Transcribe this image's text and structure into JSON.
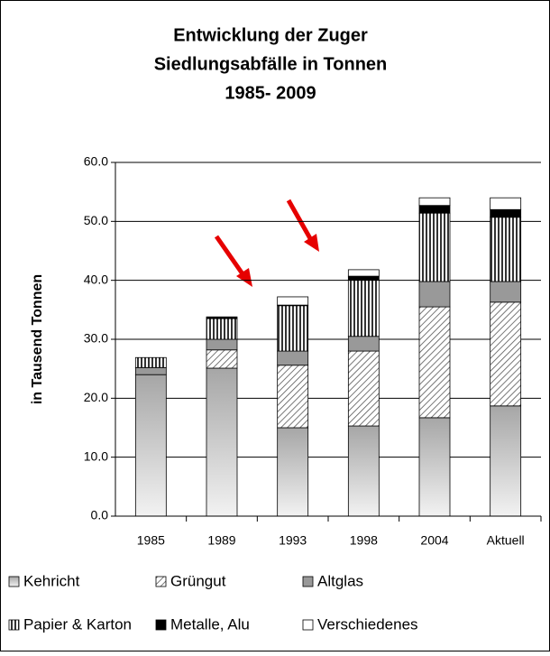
{
  "chart_data": {
    "type": "stacked_bar",
    "title": [
      "Entwicklung der Zuger",
      "Siedlungsabfälle in Tonnen",
      "1985- 2009"
    ],
    "y_label": "in Tausend Tonnen",
    "categories": [
      "1985",
      "1989",
      "1993",
      "1998",
      "2004",
      "Aktuell"
    ],
    "series": [
      {
        "name": "Kehricht",
        "color": "#c8c8c8",
        "pattern": "gradient",
        "values": [
          24.0,
          25.1,
          15.0,
          15.3,
          16.7,
          18.7
        ]
      },
      {
        "name": "Grüngut",
        "color": "#ffffff",
        "pattern": "diagonal",
        "values": [
          0,
          3.1,
          10.6,
          12.7,
          18.8,
          17.6
        ]
      },
      {
        "name": "Altglas",
        "color": "#999999",
        "pattern": "solid",
        "values": [
          1.2,
          1.8,
          2.4,
          2.5,
          4.3,
          3.5
        ]
      },
      {
        "name": "Papier & Karton",
        "color": "#ffffff",
        "pattern": "vertical",
        "values": [
          1.7,
          3.5,
          7.7,
          9.5,
          11.6,
          10.9
        ]
      },
      {
        "name": "Metalle, Alu",
        "color": "#000000",
        "pattern": "solid",
        "values": [
          0,
          0.3,
          0.1,
          0.7,
          1.3,
          1.3
        ]
      },
      {
        "name": "Verschiedenes",
        "color": "#ffffff",
        "pattern": "solid",
        "values": [
          0,
          0,
          1.4,
          1.1,
          1.3,
          2.0
        ]
      }
    ],
    "ylim": [
      0,
      60
    ],
    "yticks": [
      {
        "value": 0,
        "label": "0.0"
      },
      {
        "value": 10,
        "label": "10.0"
      },
      {
        "value": 20,
        "label": "20.0"
      },
      {
        "value": 30,
        "label": "30.0"
      },
      {
        "value": 40,
        "label": "40.0"
      },
      {
        "value": 50,
        "label": "50.0"
      },
      {
        "value": 60,
        "label": "60.0"
      }
    ],
    "grid": true
  }
}
